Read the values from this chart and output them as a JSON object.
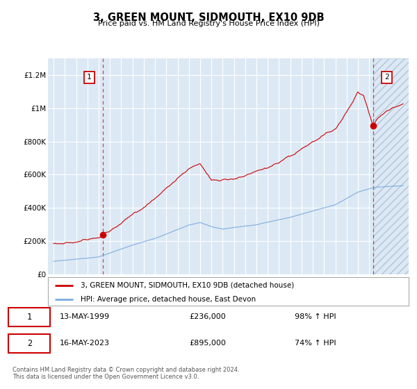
{
  "title": "3, GREEN MOUNT, SIDMOUTH, EX10 9DB",
  "subtitle": "Price paid vs. HM Land Registry's House Price Index (HPI)",
  "legend_line1": "3, GREEN MOUNT, SIDMOUTH, EX10 9DB (detached house)",
  "legend_line2": "HPI: Average price, detached house, East Devon",
  "annotation1_date": "13-MAY-1999",
  "annotation1_price": "£236,000",
  "annotation1_pct": "98% ↑ HPI",
  "annotation2_date": "16-MAY-2023",
  "annotation2_price": "£895,000",
  "annotation2_pct": "74% ↑ HPI",
  "footer": "Contains HM Land Registry data © Crown copyright and database right 2024.\nThis data is licensed under the Open Government Licence v3.0.",
  "red_color": "#cc0000",
  "blue_color": "#7aaadd",
  "bg_color": "#dce9f5",
  "grid_color": "#ffffff",
  "ylim": [
    0,
    1300000
  ],
  "yticks": [
    0,
    200000,
    400000,
    600000,
    800000,
    1000000,
    1200000
  ],
  "ytick_labels": [
    "£0",
    "£200K",
    "£400K",
    "£600K",
    "£800K",
    "£1M",
    "£1.2M"
  ],
  "sale1_year": 1999.37,
  "sale1_price": 236000,
  "sale2_year": 2023.37,
  "sale2_price": 895000,
  "xstart": 1994.5,
  "xend": 2026.5
}
